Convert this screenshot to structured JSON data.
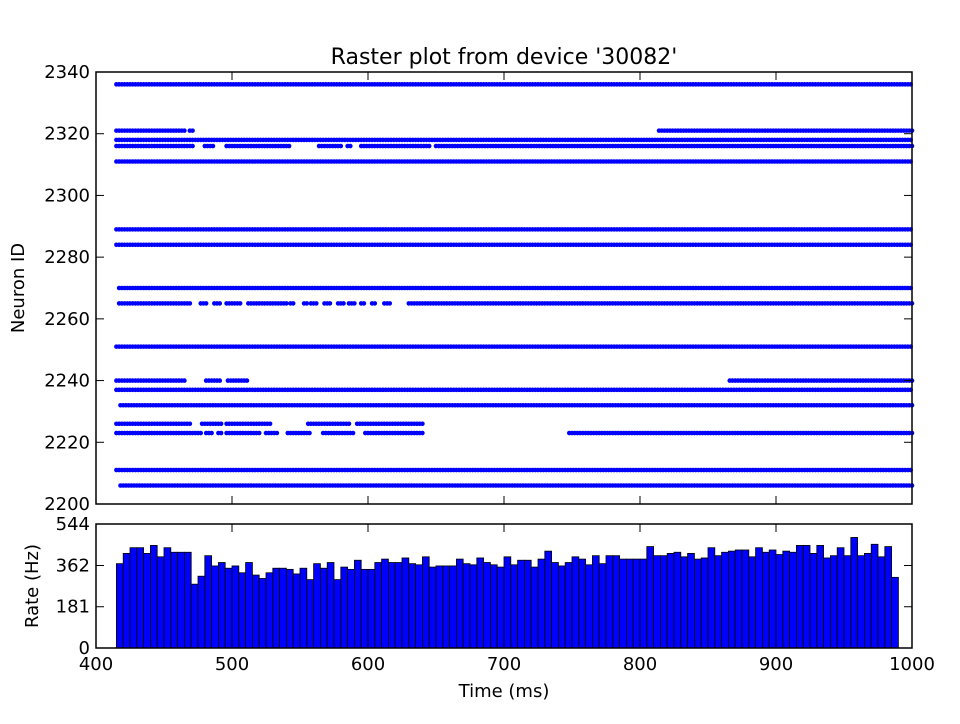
{
  "chart_data": [
    {
      "type": "scatter",
      "title": "Raster plot from device '30082'",
      "xlabel": "",
      "ylabel": "Neuron ID",
      "xlim": [
        400,
        1000
      ],
      "ylim": [
        2200,
        2340
      ],
      "yticks": [
        "2200",
        "2220",
        "2240",
        "2260",
        "2280",
        "2300",
        "2320",
        "2340"
      ],
      "grid": false,
      "marker_color": "#0000ff",
      "spike_interval_ms": 2,
      "trains": [
        {
          "neuron": 2336,
          "segments": [
            [
              415,
              1000
            ]
          ]
        },
        {
          "neuron": 2321,
          "segments": [
            [
              415,
              466
            ],
            [
              469,
              472
            ],
            [
              814,
              1000
            ]
          ]
        },
        {
          "neuron": 2318,
          "segments": [
            [
              415,
              1000
            ]
          ]
        },
        {
          "neuron": 2316,
          "segments": [
            [
              415,
              472
            ],
            [
              480,
              487
            ],
            [
              496,
              542
            ],
            [
              564,
              580
            ],
            [
              585,
              588
            ],
            [
              595,
              645
            ],
            [
              650,
              1000
            ]
          ]
        },
        {
          "neuron": 2311,
          "segments": [
            [
              415,
              1000
            ]
          ]
        },
        {
          "neuron": 2289,
          "segments": [
            [
              415,
              1000
            ]
          ]
        },
        {
          "neuron": 2284,
          "segments": [
            [
              415,
              1000
            ]
          ]
        },
        {
          "neuron": 2270,
          "segments": [
            [
              417,
              1000
            ]
          ]
        },
        {
          "neuron": 2265,
          "segments": [
            [
              417,
              470
            ],
            [
              477,
              482
            ],
            [
              487,
              492
            ],
            [
              496,
              506
            ],
            [
              512,
              540
            ],
            [
              543,
              546
            ],
            [
              553,
              556
            ],
            [
              558,
              562
            ],
            [
              568,
              572
            ],
            [
              578,
              582
            ],
            [
              586,
              590
            ],
            [
              595,
              598
            ],
            [
              603,
              605
            ],
            [
              612,
              616
            ],
            [
              630,
              1000
            ]
          ]
        },
        {
          "neuron": 2251,
          "segments": [
            [
              415,
              1000
            ]
          ]
        },
        {
          "neuron": 2240,
          "segments": [
            [
              415,
              466
            ],
            [
              481,
              492
            ],
            [
              497,
              512
            ],
            [
              866,
              1000
            ]
          ]
        },
        {
          "neuron": 2237,
          "segments": [
            [
              415,
              1000
            ]
          ]
        },
        {
          "neuron": 2232,
          "segments": [
            [
              418,
              1000
            ]
          ]
        },
        {
          "neuron": 2226,
          "segments": [
            [
              415,
              470
            ],
            [
              478,
              492
            ],
            [
              496,
              528
            ],
            [
              556,
              586
            ],
            [
              592,
              640
            ]
          ]
        },
        {
          "neuron": 2223,
          "segments": [
            [
              415,
              478
            ],
            [
              481,
              486
            ],
            [
              490,
              492
            ],
            [
              496,
              520
            ],
            [
              525,
              534
            ],
            [
              541,
              557
            ],
            [
              567,
              590
            ],
            [
              598,
              640
            ],
            [
              748,
              1000
            ]
          ]
        },
        {
          "neuron": 2211,
          "segments": [
            [
              415,
              1000
            ]
          ]
        },
        {
          "neuron": 2206,
          "segments": [
            [
              418,
              1000
            ]
          ]
        }
      ]
    },
    {
      "type": "bar",
      "title": "",
      "xlabel": "Time (ms)",
      "ylabel": "Rate (Hz)",
      "xlim": [
        400,
        1000
      ],
      "ylim": [
        0,
        544
      ],
      "xticks": [
        "400",
        "500",
        "600",
        "700",
        "800",
        "900",
        "1000"
      ],
      "yticks": [
        "0",
        "181",
        "362",
        "544"
      ],
      "bin_start": 415,
      "bin_width": 5,
      "bar_color": "#0000ff",
      "values": [
        370,
        415,
        440,
        440,
        415,
        450,
        400,
        440,
        420,
        420,
        420,
        280,
        315,
        405,
        360,
        375,
        350,
        360,
        330,
        375,
        320,
        305,
        330,
        350,
        350,
        345,
        325,
        350,
        300,
        370,
        350,
        375,
        300,
        355,
        345,
        385,
        345,
        345,
        375,
        390,
        375,
        375,
        395,
        370,
        365,
        400,
        355,
        360,
        360,
        360,
        390,
        370,
        365,
        395,
        375,
        365,
        355,
        400,
        365,
        385,
        385,
        355,
        390,
        425,
        375,
        360,
        375,
        400,
        390,
        365,
        405,
        370,
        405,
        405,
        390,
        390,
        390,
        390,
        445,
        405,
        405,
        415,
        420,
        400,
        415,
        390,
        395,
        440,
        405,
        420,
        425,
        430,
        430,
        400,
        440,
        420,
        430,
        410,
        425,
        420,
        450,
        450,
        415,
        450,
        395,
        405,
        440,
        405,
        485,
        405,
        415,
        455,
        400,
        445,
        310
      ]
    }
  ]
}
